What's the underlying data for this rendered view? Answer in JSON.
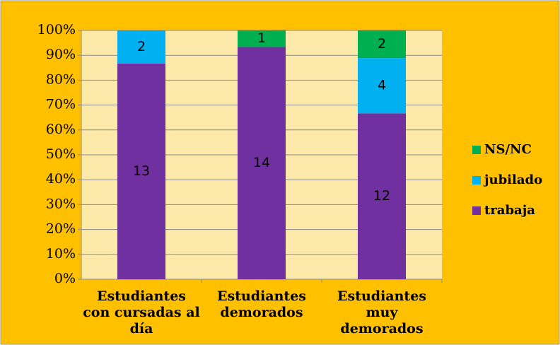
{
  "chart_data": {
    "type": "bar",
    "stacking": "percent",
    "categories": [
      [
        "Estudiantes",
        "con cursadas al",
        "día"
      ],
      [
        "Estudiantes",
        "demorados"
      ],
      [
        "Estudiantes",
        "muy",
        "demorados"
      ]
    ],
    "series": [
      {
        "name": "trabaja",
        "color": "#7030a0",
        "values": [
          13,
          14,
          12
        ]
      },
      {
        "name": "jubilado",
        "color": "#00b0f0",
        "values": [
          2,
          0,
          4
        ]
      },
      {
        "name": "NS/NC",
        "color": "#00b050",
        "values": [
          0,
          1,
          2
        ]
      }
    ],
    "ylim": [
      0,
      100
    ],
    "yticks": [
      {
        "value": 0,
        "label": "0%"
      },
      {
        "value": 10,
        "label": "10%"
      },
      {
        "value": 20,
        "label": "20%"
      },
      {
        "value": 30,
        "label": "30%"
      },
      {
        "value": 40,
        "label": "40%"
      },
      {
        "value": 50,
        "label": "50%"
      },
      {
        "value": 60,
        "label": "60%"
      },
      {
        "value": 70,
        "label": "70%"
      },
      {
        "value": 80,
        "label": "80%"
      },
      {
        "value": 90,
        "label": "90%"
      },
      {
        "value": 100,
        "label": "100%"
      }
    ],
    "grid": true,
    "legend": "right"
  }
}
